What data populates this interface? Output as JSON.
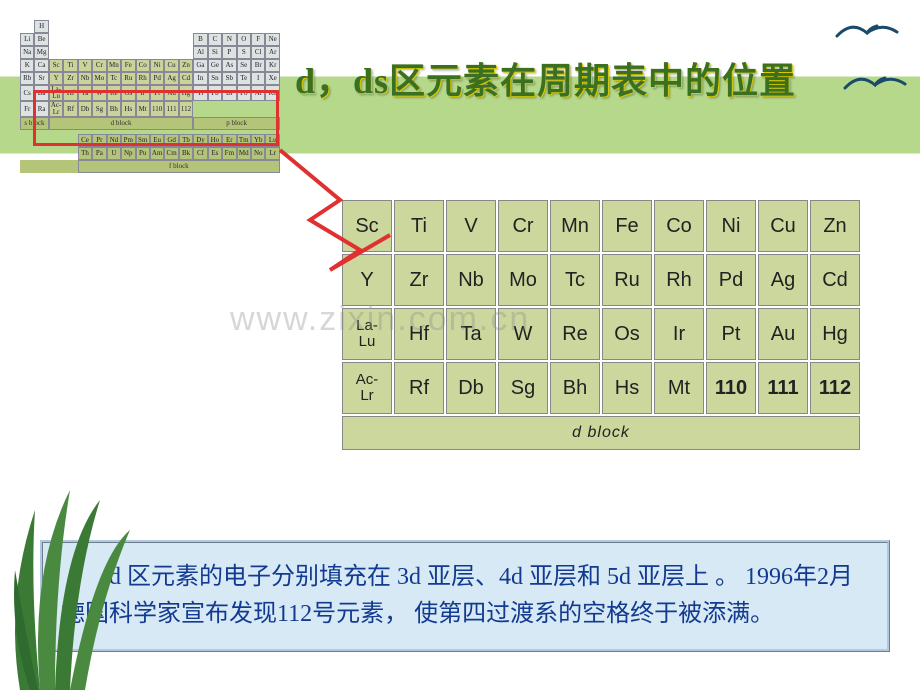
{
  "title": "d，ds区元素在周期表中的位置",
  "watermark": "www.zixin.com.cn",
  "mini_periodic": {
    "rows": [
      [
        "Li",
        "Be",
        "",
        "",
        "",
        "",
        "",
        "",
        "",
        "",
        "",
        "",
        "B",
        "C",
        "N",
        "O",
        "F",
        "Ne"
      ],
      [
        "Na",
        "Mg",
        "",
        "",
        "",
        "",
        "",
        "",
        "",
        "",
        "",
        "",
        "Al",
        "Si",
        "P",
        "S",
        "Cl",
        "Ar"
      ],
      [
        "K",
        "Ca",
        "Sc",
        "Ti",
        "V",
        "Cr",
        "Mn",
        "Fe",
        "Co",
        "Ni",
        "Cu",
        "Zn",
        "Ga",
        "Ge",
        "As",
        "Se",
        "Br",
        "Kr"
      ],
      [
        "Rb",
        "Sr",
        "Y",
        "Zr",
        "Nb",
        "Mo",
        "Tc",
        "Ru",
        "Rh",
        "Pd",
        "Ag",
        "Cd",
        "In",
        "Sn",
        "Sb",
        "Te",
        "I",
        "Xe"
      ],
      [
        "Cs",
        "Ba",
        "La-Lu",
        "Hf",
        "Ta",
        "W",
        "Re",
        "Os",
        "Ir",
        "Pt",
        "Au",
        "Hg",
        "Tl",
        "Pb",
        "Bi",
        "Po",
        "At",
        "Rn"
      ],
      [
        "Fr",
        "Ra",
        "Ac-Lr",
        "Rf",
        "Db",
        "Sg",
        "Bh",
        "Hs",
        "Mt",
        "110",
        "111",
        "112",
        "",
        "",
        "",
        "",
        "",
        ""
      ]
    ],
    "h_cell": "H",
    "sblock_label": "s block",
    "dblock_label": "d block",
    "pblock_label": "p block",
    "fblock_label": "f block",
    "lanthanides": [
      "Ce",
      "Pr",
      "Nd",
      "Pm",
      "Sm",
      "Eu",
      "Gd",
      "Tb",
      "Dy",
      "Ho",
      "Er",
      "Tm",
      "Yb",
      "Lu"
    ],
    "actinides": [
      "Th",
      "Pa",
      "U",
      "Np",
      "Pu",
      "Am",
      "Cm",
      "Bk",
      "Cf",
      "Es",
      "Fm",
      "Md",
      "No",
      "Lr"
    ]
  },
  "d_block": {
    "rows": [
      [
        "Sc",
        "Ti",
        "V",
        "Cr",
        "Mn",
        "Fe",
        "Co",
        "Ni",
        "Cu",
        "Zn"
      ],
      [
        "Y",
        "Zr",
        "Nb",
        "Mo",
        "Tc",
        "Ru",
        "Rh",
        "Pd",
        "Ag",
        "Cd"
      ],
      [
        "La-\nLu",
        "Hf",
        "Ta",
        "W",
        "Re",
        "Os",
        "Ir",
        "Pt",
        "Au",
        "Hg"
      ],
      [
        "Ac-\nLr",
        "Rf",
        "Db",
        "Sg",
        "Bh",
        "Hs",
        "Mt",
        "110",
        "111",
        "112"
      ]
    ],
    "block_label": "d block",
    "bold_cells": [
      "110",
      "111",
      "112"
    ]
  },
  "footer_text": "d 区元素的电子分别填充在 3d 亚层、4d 亚层和 5d 亚层上 。 1996年2月德国科学家宣布发现112号元素， 使第四过渡系的空格终于被添满。",
  "styling": {
    "title_color": "#3a7020",
    "title_fontsize": 36,
    "title_stripe_bg": "#b5d88b",
    "d_cell_bg": "#cbd79d",
    "d_cell_border": "#888888",
    "d_cell_fontsize": 20,
    "d_cell_width": 50,
    "d_cell_height": 52,
    "red_box_color": "#e03030",
    "bottom_box_bg": "#d7e9f5",
    "bottom_box_color": "#123a90",
    "bottom_box_fontsize": 24,
    "watermark_color": "rgba(140,140,140,.35)",
    "bird_color": "#1b4a6a",
    "grass_color": "#3a7a35"
  }
}
